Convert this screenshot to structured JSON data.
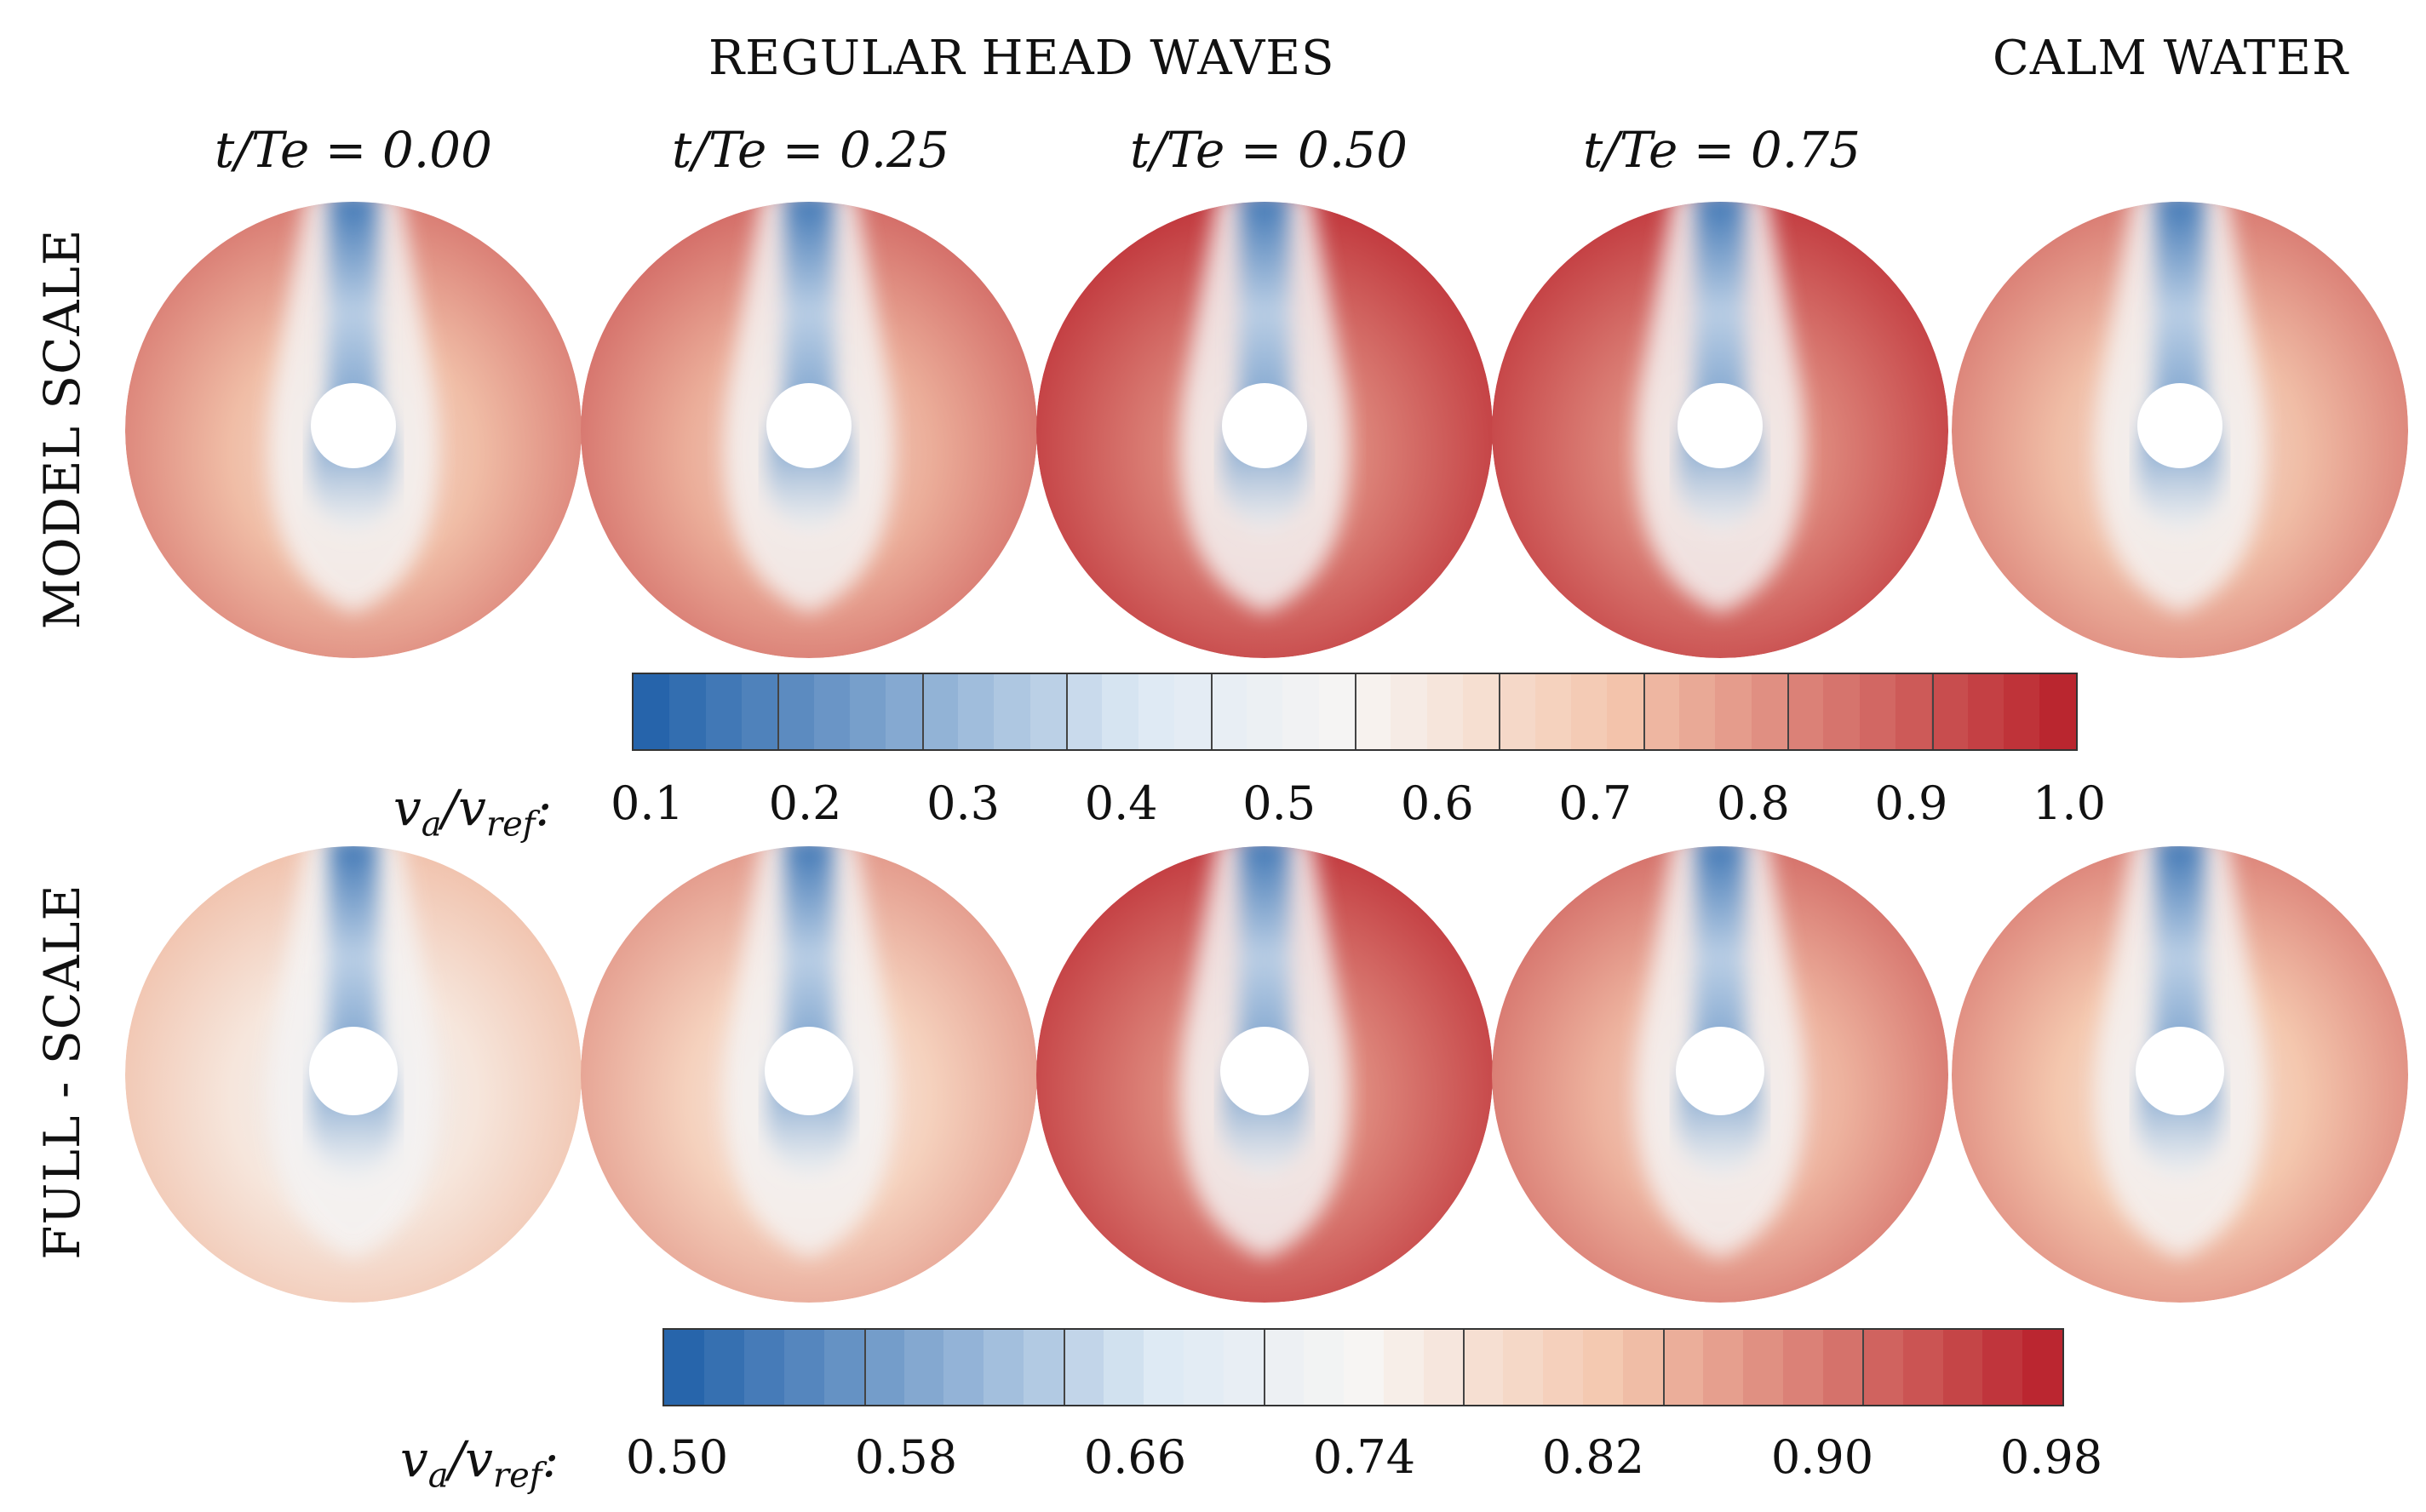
{
  "header": {
    "waves_title": "REGULAR HEAD WAVES",
    "calm_title": "CALM WATER"
  },
  "time_labels": [
    "t/Te = 0.00",
    "t/Te = 0.25",
    "t/Te = 0.50",
    "t/Te = 0.75"
  ],
  "rows": [
    {
      "label": "MODEL SCALE",
      "panel_levels": [
        0.8,
        0.83,
        0.93,
        0.92,
        0.8
      ],
      "colorbar": {
        "title_main": "v",
        "title_sub_a": "a",
        "title_div": "/v",
        "title_sub_ref": "ref",
        "title_colon": ":",
        "ticks": [
          "0.1",
          "0.2",
          "0.3",
          "0.4",
          "0.5",
          "0.6",
          "0.7",
          "0.8",
          "0.9",
          "1.0"
        ]
      }
    },
    {
      "label": "FULL - SCALE",
      "panel_levels": [
        0.66,
        0.74,
        0.92,
        0.82,
        0.78
      ],
      "colorbar": {
        "title_main": "v",
        "title_sub_a": "a",
        "title_div": "/v",
        "title_sub_ref": "ref",
        "title_colon": ":",
        "ticks": [
          "0.50",
          "0.58",
          "0.66",
          "0.74",
          "0.82",
          "0.90",
          "0.98"
        ]
      }
    }
  ],
  "colors": {
    "deep_blue": "#1f5fa8",
    "light_blue": "#dde9f4",
    "white_mid": "#f7f5f3",
    "light_red": "#f4c7ae",
    "deep_red": "#b81f2a"
  }
}
